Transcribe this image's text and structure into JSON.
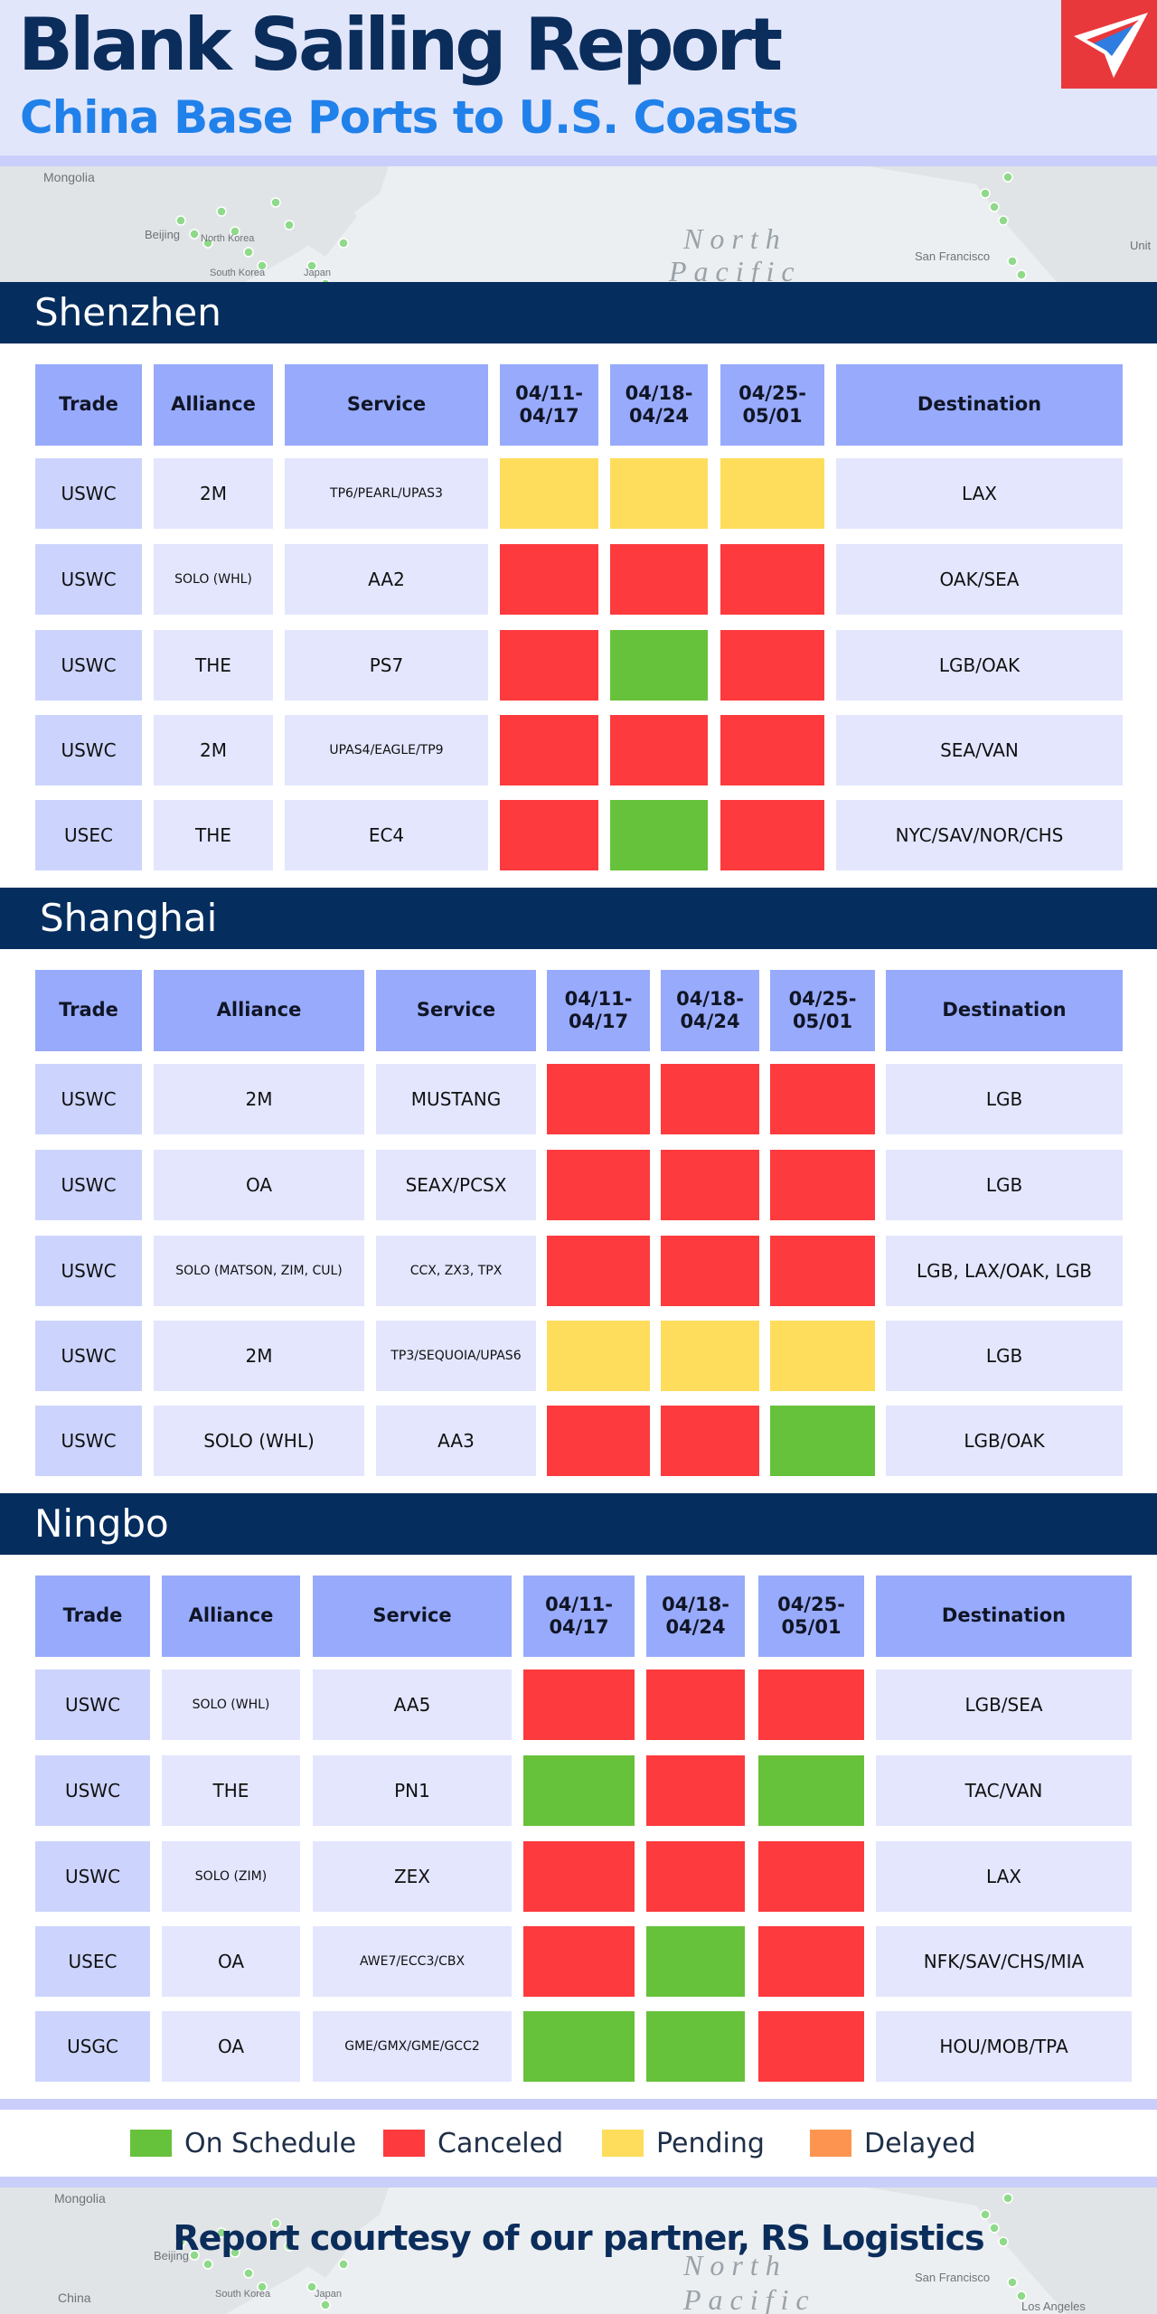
{
  "header": {
    "title": "Blank Sailing Report",
    "subtitle": "China Base Ports to U.S. Coasts"
  },
  "map_top_labels": [
    "Mongolia",
    "Beijing",
    "North Korea",
    "South Korea",
    "Japan",
    "San Francisco",
    "Unit"
  ],
  "map_top_ocean": [
    "North",
    "Pacific"
  ],
  "map_bottom_labels": [
    "Mongolia",
    "Beijing",
    "China",
    "South Korea",
    "Japan",
    "San Francisco",
    "Los Angeles"
  ],
  "map_bottom_ocean": [
    "North",
    "Pacific"
  ],
  "columns": [
    "Trade",
    "Alliance",
    "Service",
    "04/11-\n04/17",
    "04/18-\n04/24",
    "04/25-\n05/01",
    "Destination"
  ],
  "colors": {
    "on_schedule": "#66c23a",
    "canceled": "#fd3a3d",
    "pending": "#fedd5c",
    "delayed": "#fd9550",
    "header_cell": "#98aafb",
    "trade_cell": "#ccd4fd",
    "body_cell": "#e3e6fd",
    "section_bar": "#052d5e"
  },
  "sections": [
    {
      "name": "Shenzhen",
      "rows": [
        {
          "trade": "USWC",
          "alliance": "2M",
          "service": "TP6/PEARL/UPAS3",
          "weeks": [
            "pending",
            "pending",
            "pending"
          ],
          "destination": "LAX"
        },
        {
          "trade": "USWC",
          "alliance": "SOLO (WHL)",
          "service": "AA2",
          "weeks": [
            "canceled",
            "canceled",
            "canceled"
          ],
          "destination": "OAK/SEA"
        },
        {
          "trade": "USWC",
          "alliance": "THE",
          "service": "PS7",
          "weeks": [
            "canceled",
            "on_schedule",
            "canceled"
          ],
          "destination": "LGB/OAK"
        },
        {
          "trade": "USWC",
          "alliance": "2M",
          "service": "UPAS4/EAGLE/TP9",
          "weeks": [
            "canceled",
            "canceled",
            "canceled"
          ],
          "destination": "SEA/VAN"
        },
        {
          "trade": "USEC",
          "alliance": "THE",
          "service": "EC4",
          "weeks": [
            "canceled",
            "on_schedule",
            "canceled"
          ],
          "destination": "NYC/SAV/NOR/CHS"
        }
      ]
    },
    {
      "name": "Shanghai",
      "rows": [
        {
          "trade": "USWC",
          "alliance": "2M",
          "service": "MUSTANG",
          "weeks": [
            "canceled",
            "canceled",
            "canceled"
          ],
          "destination": "LGB"
        },
        {
          "trade": "USWC",
          "alliance": "OA",
          "service": "SEAX/PCSX",
          "weeks": [
            "canceled",
            "canceled",
            "canceled"
          ],
          "destination": "LGB"
        },
        {
          "trade": "USWC",
          "alliance": "SOLO (MATSON, ZIM, CUL)",
          "service": "CCX, ZX3, TPX",
          "weeks": [
            "canceled",
            "canceled",
            "canceled"
          ],
          "destination": "LGB, LAX/OAK, LGB"
        },
        {
          "trade": "USWC",
          "alliance": "2M",
          "service": "TP3/SEQUOIA/UPAS6",
          "weeks": [
            "pending",
            "pending",
            "pending"
          ],
          "destination": "LGB"
        },
        {
          "trade": "USWC",
          "alliance": "SOLO (WHL)",
          "service": "AA3",
          "weeks": [
            "canceled",
            "canceled",
            "on_schedule"
          ],
          "destination": "LGB/OAK"
        }
      ]
    },
    {
      "name": "Ningbo",
      "rows": [
        {
          "trade": "USWC",
          "alliance": "SOLO (WHL)",
          "service": "AA5",
          "weeks": [
            "canceled",
            "canceled",
            "canceled"
          ],
          "destination": "LGB/SEA"
        },
        {
          "trade": "USWC",
          "alliance": "THE",
          "service": "PN1",
          "weeks": [
            "on_schedule",
            "canceled",
            "on_schedule"
          ],
          "destination": "TAC/VAN"
        },
        {
          "trade": "USWC",
          "alliance": "SOLO (ZIM)",
          "service": "ZEX",
          "weeks": [
            "canceled",
            "canceled",
            "canceled"
          ],
          "destination": "LAX"
        },
        {
          "trade": "USEC",
          "alliance": "OA",
          "service": "AWE7/ECC3/CBX",
          "weeks": [
            "canceled",
            "on_schedule",
            "canceled"
          ],
          "destination": "NFK/SAV/CHS/MIA"
        },
        {
          "trade": "USGC",
          "alliance": "OA",
          "service": "GME/GMX/GME/GCC2",
          "weeks": [
            "on_schedule",
            "on_schedule",
            "canceled"
          ],
          "destination": "HOU/MOB/TPA"
        }
      ]
    }
  ],
  "legend": [
    {
      "key": "on_schedule",
      "label": "On Schedule"
    },
    {
      "key": "canceled",
      "label": "Canceled"
    },
    {
      "key": "pending",
      "label": "Pending"
    },
    {
      "key": "delayed",
      "label": "Delayed"
    }
  ],
  "footer": {
    "text": "Report courtesy of our partner, RS Logistics"
  }
}
